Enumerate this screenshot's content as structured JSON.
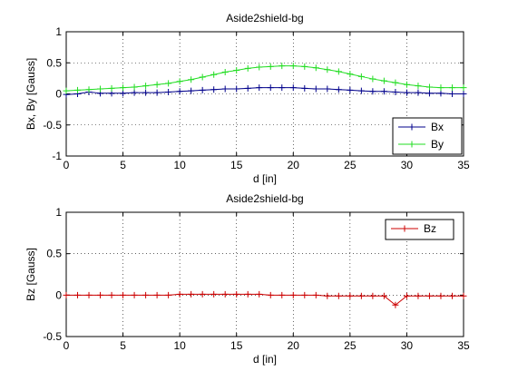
{
  "chart_data": [
    {
      "type": "line",
      "title": "Aside2shield-bg",
      "xlabel": "d [in]",
      "ylabel": "Bx, By [Gauss]",
      "xlim": [
        0,
        35
      ],
      "ylim": [
        -1,
        1
      ],
      "xticks": [
        "0",
        "5",
        "10",
        "15",
        "20",
        "25",
        "30",
        "35"
      ],
      "yticks": [
        "1",
        "0.5",
        "0",
        "-0.5",
        "-1"
      ],
      "grid": true,
      "legend_position": "bottom-right",
      "x": [
        0,
        1,
        2,
        3,
        4,
        5,
        6,
        7,
        8,
        9,
        10,
        11,
        12,
        13,
        14,
        15,
        16,
        17,
        18,
        19,
        20,
        21,
        22,
        23,
        24,
        25,
        26,
        27,
        28,
        29,
        30,
        31,
        32,
        33,
        34,
        35
      ],
      "series": [
        {
          "name": "Bx",
          "color": "#00008B",
          "marker": "+",
          "values": [
            -0.01,
            0.0,
            0.03,
            0.01,
            0.01,
            0.01,
            0.02,
            0.02,
            0.02,
            0.03,
            0.04,
            0.05,
            0.06,
            0.07,
            0.08,
            0.08,
            0.09,
            0.1,
            0.1,
            0.1,
            0.1,
            0.09,
            0.08,
            0.08,
            0.07,
            0.06,
            0.05,
            0.04,
            0.04,
            0.03,
            0.02,
            0.02,
            0.01,
            0.01,
            0.0,
            0.0
          ]
        },
        {
          "name": "By",
          "color": "#22DD22",
          "marker": "+",
          "values": [
            0.05,
            0.06,
            0.07,
            0.08,
            0.09,
            0.1,
            0.11,
            0.13,
            0.15,
            0.17,
            0.2,
            0.23,
            0.27,
            0.31,
            0.35,
            0.38,
            0.41,
            0.43,
            0.44,
            0.45,
            0.45,
            0.44,
            0.42,
            0.39,
            0.36,
            0.32,
            0.28,
            0.24,
            0.21,
            0.18,
            0.15,
            0.13,
            0.11,
            0.1,
            0.1,
            0.1
          ]
        }
      ]
    },
    {
      "type": "line",
      "title": "Aside2shield-bg",
      "xlabel": "d [in]",
      "ylabel": "Bz [Gauss]",
      "xlim": [
        0,
        35
      ],
      "ylim": [
        -0.5,
        1
      ],
      "xticks": [
        "0",
        "5",
        "10",
        "15",
        "20",
        "25",
        "30",
        "35"
      ],
      "yticks": [
        "1",
        "0.5",
        "0",
        "-0.5"
      ],
      "grid": true,
      "legend_position": "top-right",
      "x": [
        0,
        1,
        2,
        3,
        4,
        5,
        6,
        7,
        8,
        9,
        10,
        11,
        12,
        13,
        14,
        15,
        16,
        17,
        18,
        19,
        20,
        21,
        22,
        23,
        24,
        25,
        26,
        27,
        28,
        29,
        30,
        31,
        32,
        33,
        34,
        35
      ],
      "series": [
        {
          "name": "Bz",
          "color": "#CC0000",
          "marker": "+",
          "values": [
            0.0,
            0.0,
            0.0,
            0.0,
            0.0,
            0.0,
            0.0,
            0.0,
            0.0,
            0.0,
            0.01,
            0.01,
            0.01,
            0.01,
            0.01,
            0.01,
            0.01,
            0.01,
            0.0,
            0.0,
            0.0,
            0.0,
            0.0,
            -0.01,
            -0.01,
            -0.01,
            -0.01,
            -0.01,
            -0.01,
            -0.12,
            -0.01,
            -0.01,
            -0.01,
            -0.01,
            -0.01,
            -0.01
          ]
        }
      ]
    }
  ]
}
